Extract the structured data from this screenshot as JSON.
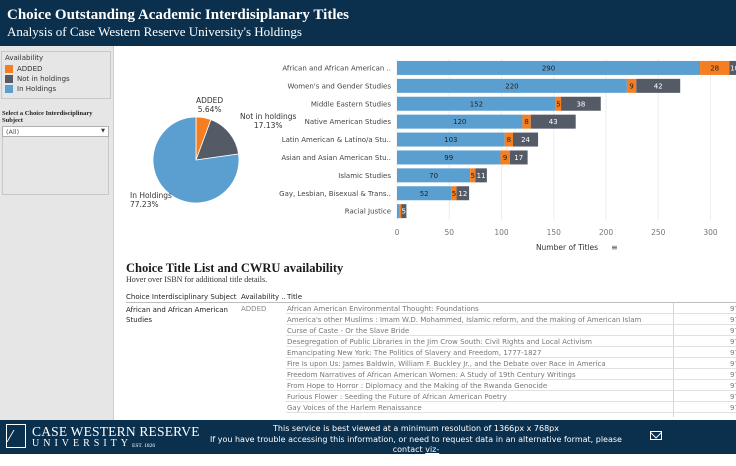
{
  "header": {
    "title": "Choice Outstanding Academic Interdisiplanary Titles",
    "subtitle": "Analysis of Case Western Reserve University's Holdings"
  },
  "legend": {
    "title": "Availability",
    "items": [
      {
        "label": "ADDED",
        "color": "#f57f20"
      },
      {
        "label": "Not in holdings",
        "color": "#555b66"
      },
      {
        "label": "In Holdings",
        "color": "#5b9fd1"
      }
    ]
  },
  "filter": {
    "title": "Select a Choice Interdisciplinary Subject",
    "value": "(All)"
  },
  "colors": {
    "added": "#f57f20",
    "not_in_holdings": "#555b66",
    "in_holdings": "#5b9fd1",
    "header_bg": "#0a304e"
  },
  "chart_data": [
    {
      "type": "pie",
      "slices": [
        {
          "name": "ADDED",
          "value": 5.64,
          "label": "5.64%"
        },
        {
          "name": "Not in holdings",
          "value": 17.13,
          "label": "17.13%"
        },
        {
          "name": "In Holdings",
          "value": 77.23,
          "label": "77.23%"
        }
      ]
    },
    {
      "type": "bar",
      "orientation": "horizontal",
      "stacked": true,
      "categories": [
        "African and African American ..",
        "Women's and Gender Studies",
        "Middle Eastern Studies",
        "Native American Studies",
        "Latin American & Latino/a Stu..",
        "Asian and Asian American Stu..",
        "Islamic Studies",
        "Gay, Lesbian, Bisexual & Trans..",
        "Racial Justice"
      ],
      "series": [
        {
          "name": "In Holdings",
          "values": [
            290,
            220,
            152,
            120,
            103,
            99,
            70,
            52,
            2
          ]
        },
        {
          "name": "ADDED",
          "values": [
            28,
            9,
            5,
            8,
            8,
            9,
            5,
            5,
            2
          ]
        },
        {
          "name": "Not in holdings",
          "values": [
            10,
            42,
            38,
            43,
            24,
            17,
            11,
            12,
            5
          ]
        }
      ],
      "xlabel": "Number of Titles",
      "xticks": [
        0,
        50,
        100,
        150,
        200,
        250,
        300
      ],
      "xlim": [
        0,
        330
      ]
    }
  ],
  "table_section": {
    "title": "Choice Title List and CWRU availability",
    "subtitle": "Hover over ISBN for additional title details.",
    "columns": [
      "Choice Interdisciplinary Subject",
      "Availability ..",
      "Title"
    ],
    "subject": "African and African American Studies",
    "availability": "ADDED",
    "rows": [
      {
        "title": "African American Environmental Thought: Foundations",
        "isbn": "97"
      },
      {
        "title": "America's other Muslims : Imam W.D. Mohammed, Islamic reform, and the making of American Islam",
        "isbn": "97"
      },
      {
        "title": "Curse of Caste - Or the Slave Bride",
        "isbn": "97"
      },
      {
        "title": "Desegregation of Public Libraries in the Jim Crow South: Civil Rights and Local Activism",
        "isbn": "97"
      },
      {
        "title": "Emancipating New York: The Politics of Slavery and Freedom, 1777-1827",
        "isbn": "97"
      },
      {
        "title": "Fire Is upon Us: James Baldwin, William F. Buckley Jr., and the Debate over Race in America",
        "isbn": "97"
      },
      {
        "title": "Freedom Narratives of African American Women: A Study of 19th Century Writings",
        "isbn": "97"
      },
      {
        "title": "From Hope to Horror : Diplomacy and the Making of the Rwanda Genocide",
        "isbn": "97"
      },
      {
        "title": "Furious Flower : Seeding the Future of African American Poetry",
        "isbn": "97"
      },
      {
        "title": "Gay Voices of the Harlem Renaissance",
        "isbn": "97"
      }
    ]
  },
  "footer": {
    "logo_name": "CASE WESTERN RESERVE",
    "logo_sub": "UNIVERSITY",
    "logo_est": "EST. 1826",
    "line1": "This service is best viewed at a minimum resolution of 1366px x 768px",
    "line2": "If you have trouble accessing this information, or need to request data in an alternative format, please contact",
    "contact_a": "viz-",
    "contact_b": "accessibility@case.edu"
  }
}
